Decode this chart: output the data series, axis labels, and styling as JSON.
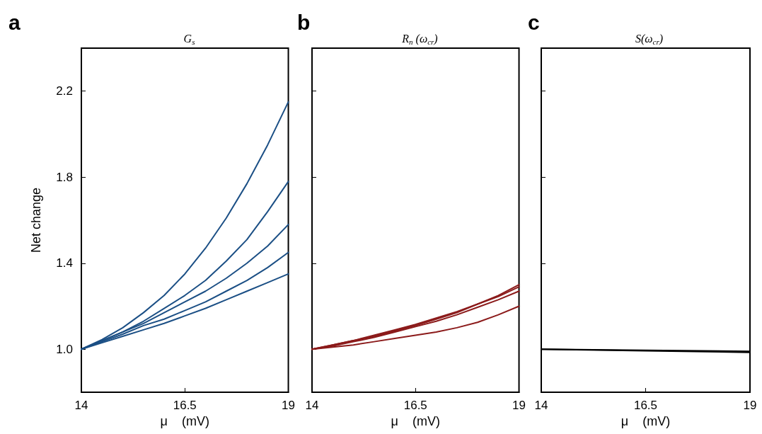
{
  "chart_data": [
    {
      "type": "line",
      "title": "G$_{s}$",
      "xlabel": "μ    (mV)",
      "ylabel": "Net change",
      "annotations": [
        "a"
      ],
      "x": [
        14,
        14.5,
        15,
        15.5,
        16,
        16.5,
        17,
        17.5,
        18,
        18.5,
        19
      ],
      "xlim": [
        14,
        19
      ],
      "xticks": [
        14,
        16.5,
        19
      ],
      "ylim": [
        0.8,
        2.4
      ],
      "yticks": [
        {
          "value": 1,
          "label": "1.0"
        },
        {
          "value": 1.4,
          "label": "1.4"
        },
        {
          "value": 1.8,
          "label": "1.8"
        },
        {
          "value": 2.2,
          "label": "2.2"
        }
      ],
      "grid": false,
      "marker": "none",
      "line_style": "solid",
      "series": [
        {
          "color": "#1b4f85",
          "values": [
            1.0,
            1.045,
            1.1,
            1.17,
            1.25,
            1.35,
            1.47,
            1.61,
            1.77,
            1.95,
            2.15
          ]
        },
        {
          "color": "#1b4f85",
          "values": [
            1.0,
            1.04,
            1.08,
            1.13,
            1.19,
            1.25,
            1.32,
            1.41,
            1.51,
            1.64,
            1.78
          ]
        },
        {
          "color": "#1b4f85",
          "values": [
            1.0,
            1.04,
            1.08,
            1.12,
            1.17,
            1.22,
            1.27,
            1.33,
            1.4,
            1.48,
            1.58
          ]
        },
        {
          "color": "#1b4f85",
          "values": [
            1.0,
            1.035,
            1.07,
            1.11,
            1.14,
            1.18,
            1.22,
            1.27,
            1.32,
            1.38,
            1.45
          ]
        },
        {
          "color": "#1b4f85",
          "values": [
            1.0,
            1.03,
            1.06,
            1.09,
            1.12,
            1.155,
            1.19,
            1.23,
            1.27,
            1.31,
            1.35
          ]
        }
      ]
    },
    {
      "type": "line",
      "title": "R$_{n}$ (ω$_{cr}$)",
      "xlabel": "μ    (mV)",
      "annotations": [
        "b"
      ],
      "x": [
        14,
        14.5,
        15,
        15.5,
        16,
        16.5,
        17,
        17.5,
        18,
        18.5,
        19
      ],
      "xlim": [
        14,
        19
      ],
      "xticks": [
        14,
        16.5,
        19
      ],
      "ylim": [
        0.8,
        2.4
      ],
      "yticks": [
        {
          "value": 1,
          "label": null
        },
        {
          "value": 1.4,
          "label": null
        },
        {
          "value": 1.8,
          "label": null
        },
        {
          "value": 2.2,
          "label": null
        }
      ],
      "tick_labels": "x",
      "grid": false,
      "marker": "none",
      "line_style": "solid",
      "series": [
        {
          "color": "#8b1a1a",
          "values": [
            1.0,
            1.02,
            1.04,
            1.06,
            1.085,
            1.11,
            1.14,
            1.17,
            1.21,
            1.25,
            1.3
          ]
        },
        {
          "color": "#8b1a1a",
          "values": [
            1.0,
            1.02,
            1.04,
            1.065,
            1.09,
            1.115,
            1.145,
            1.175,
            1.21,
            1.245,
            1.29
          ]
        },
        {
          "color": "#8b1a1a",
          "values": [
            1.0,
            1.015,
            1.035,
            1.055,
            1.08,
            1.105,
            1.13,
            1.16,
            1.195,
            1.23,
            1.27
          ]
        },
        {
          "color": "#8b1a1a",
          "values": [
            1.0,
            1.01,
            1.02,
            1.035,
            1.05,
            1.065,
            1.08,
            1.1,
            1.125,
            1.16,
            1.2
          ]
        }
      ]
    },
    {
      "type": "line",
      "title": "S(ω$_{cr}$)",
      "xlabel": "μ    (mV)",
      "annotations": [
        "c"
      ],
      "x": [
        14,
        16.5,
        19
      ],
      "xlim": [
        14,
        19
      ],
      "xticks": [
        14,
        16.5,
        19
      ],
      "ylim": [
        0.8,
        2.4
      ],
      "yticks": [
        {
          "value": 1,
          "label": null
        },
        {
          "value": 1.4,
          "label": null
        },
        {
          "value": 1.8,
          "label": null
        },
        {
          "value": 2.2,
          "label": null
        }
      ],
      "tick_labels": "x",
      "grid": false,
      "marker": "none",
      "line_style": "solid",
      "series": [
        {
          "color": "#000000",
          "values": [
            1.0,
            0.995,
            0.99
          ]
        },
        {
          "color": "#000000",
          "values": [
            1.0,
            0.993,
            0.985
          ]
        }
      ]
    }
  ]
}
